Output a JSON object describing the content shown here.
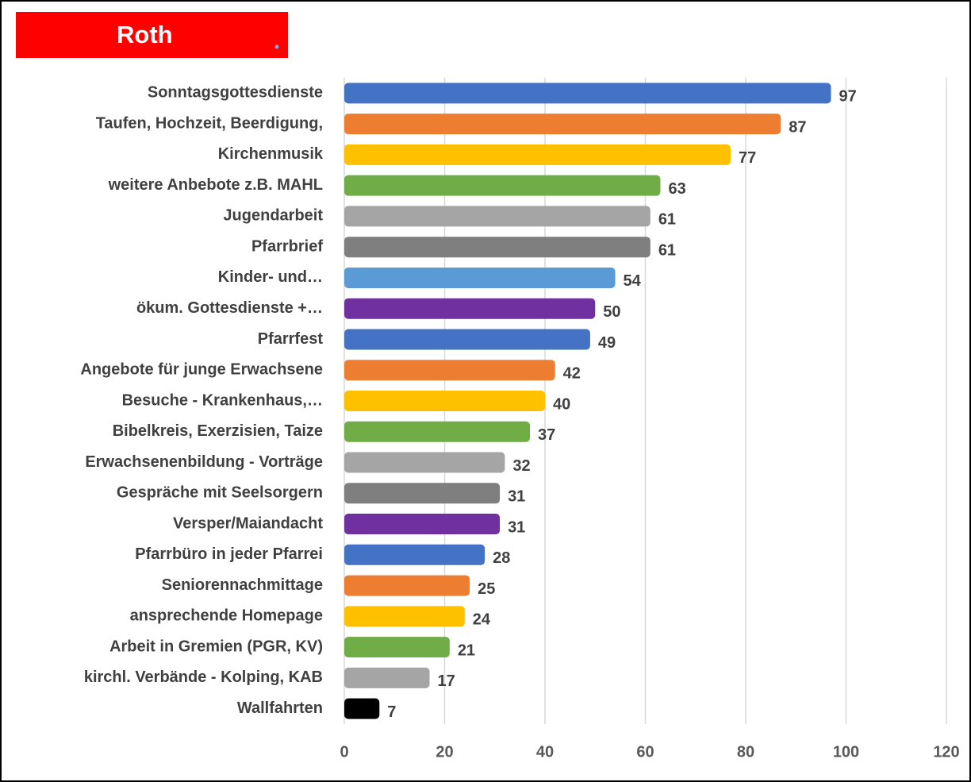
{
  "chart_data": {
    "type": "bar",
    "orientation": "horizontal",
    "title": "Roth",
    "categories": [
      "Sonntagsgottesdienste",
      "Taufen, Hochzeit, Beerdigung,",
      "Kirchenmusik",
      "weitere Anbebote z.B. MAHL",
      "Jugendarbeit",
      "Pfarrbrief",
      "Kinder- und…",
      "ökum. Gottesdienste +…",
      "Pfarrfest",
      "Angebote für junge Erwachsene",
      "Besuche - Krankenhaus,…",
      "Bibelkreis, Exerzisien, Taize",
      "Erwachsenenbildung - Vorträge",
      "Gespräche mit Seelsorgern",
      "Versper/Maiandacht",
      "Pfarrbüro in jeder Pfarrei",
      "Seniorennachmittage",
      "ansprechende Homepage",
      "Arbeit in Gremien (PGR, KV)",
      "kirchl. Verbände - Kolping, KAB",
      "Wallfahrten"
    ],
    "values": [
      97,
      87,
      77,
      63,
      61,
      61,
      54,
      50,
      49,
      42,
      40,
      37,
      32,
      31,
      31,
      28,
      25,
      24,
      21,
      17,
      7
    ],
    "colors": [
      "#4472c4",
      "#ed7d31",
      "#ffc000",
      "#70ad47",
      "#a5a5a5",
      "#7f7f7f",
      "#5b9bd5",
      "#7030a0",
      "#4472c4",
      "#ed7d31",
      "#ffc000",
      "#70ad47",
      "#a5a5a5",
      "#7f7f7f",
      "#7030a0",
      "#4472c4",
      "#ed7d31",
      "#ffc000",
      "#70ad47",
      "#a5a5a5",
      "#000000"
    ],
    "xlim": [
      0,
      120
    ],
    "xticks": [
      0,
      20,
      40,
      60,
      80,
      100,
      120
    ],
    "grid": true,
    "data_labels": true
  }
}
